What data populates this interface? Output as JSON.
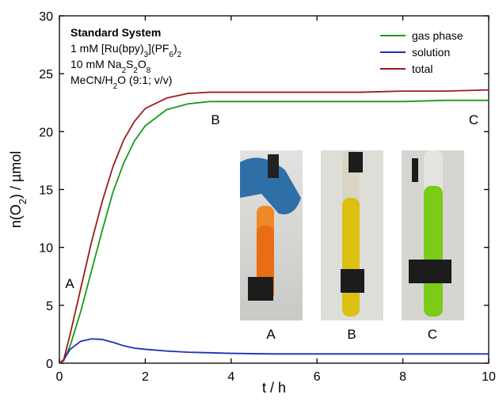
{
  "chart_data": {
    "type": "line",
    "xlabel": "t / h",
    "ylabel": [
      "n(O",
      "2",
      ") / µmol"
    ],
    "info_box": [
      [
        "Standard System"
      ],
      [
        "1 mM [Ru(bpy)",
        "3",
        "](PF",
        "6",
        ")",
        "2"
      ],
      [
        "10 mM Na",
        "2",
        "S",
        "2",
        "O",
        "8"
      ],
      [
        "MeCN/H",
        "2",
        "O (9:1; v/v)"
      ]
    ],
    "annotations": [
      "A",
      "B",
      "C"
    ],
    "photo_labels": [
      "A",
      "B",
      "C"
    ],
    "x": [
      0,
      0.1,
      0.25,
      0.5,
      0.75,
      1,
      1.25,
      1.5,
      1.75,
      2,
      2.5,
      3,
      3.5,
      4,
      5,
      6,
      7,
      8,
      9,
      10
    ],
    "series": [
      {
        "name": "gas phase",
        "color": "#1a9a1a",
        "values": [
          0,
          0.2,
          1.5,
          4.5,
          8,
          11.5,
          14.8,
          17.3,
          19.2,
          20.5,
          21.9,
          22.4,
          22.6,
          22.6,
          22.6,
          22.6,
          22.6,
          22.6,
          22.7,
          22.7
        ]
      },
      {
        "name": "solution",
        "color": "#1f2fb5",
        "values": [
          0,
          0.3,
          1.2,
          1.9,
          2.1,
          2.05,
          1.8,
          1.5,
          1.3,
          1.2,
          1.05,
          0.95,
          0.9,
          0.85,
          0.8,
          0.8,
          0.8,
          0.8,
          0.8,
          0.8
        ]
      },
      {
        "name": "total",
        "color": "#9b1c1c",
        "values": [
          0,
          0.3,
          2.5,
          6.5,
          10.5,
          14,
          17,
          19.3,
          20.9,
          22,
          22.9,
          23.3,
          23.4,
          23.4,
          23.4,
          23.4,
          23.4,
          23.5,
          23.5,
          23.6
        ]
      }
    ],
    "xlim": [
      0,
      10
    ],
    "ylim": [
      0,
      30
    ],
    "xticks": [
      0,
      2,
      4,
      6,
      8,
      10
    ],
    "yticks": [
      0,
      5,
      10,
      15,
      20,
      25,
      30
    ],
    "legend": "upper right"
  }
}
